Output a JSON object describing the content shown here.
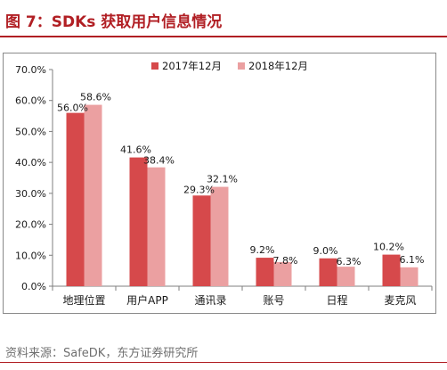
{
  "header": {
    "title": "图 7：SDKs 获取用户信息情况"
  },
  "footer": {
    "source": "资料来源：SafeDK，东方证券研究所"
  },
  "chart_data": {
    "type": "bar",
    "categories": [
      "地理位置",
      "用户APP",
      "通讯录",
      "账号",
      "日程",
      "麦克风"
    ],
    "series": [
      {
        "name": "2017年12月",
        "values": [
          56.0,
          41.6,
          29.3,
          9.2,
          9.0,
          10.2
        ],
        "labels": [
          "56.0%",
          "41.6%",
          "29.3%",
          "9.2%",
          "9.0%",
          "10.2%"
        ],
        "color": "#d6494b"
      },
      {
        "name": "2018年12月",
        "values": [
          58.6,
          38.4,
          32.1,
          7.8,
          6.3,
          6.1
        ],
        "labels": [
          "58.6%",
          "38.4%",
          "32.1%",
          "7.8%",
          "6.3%",
          "6.1%"
        ],
        "color": "#eba0a1"
      }
    ],
    "ylim": [
      0,
      70
    ],
    "yticks": [
      0,
      10,
      20,
      30,
      40,
      50,
      60,
      70
    ],
    "ytick_labels": [
      "0.0%",
      "10.0%",
      "20.0%",
      "30.0%",
      "40.0%",
      "50.0%",
      "60.0%",
      "70.0%"
    ],
    "legend_position": "top-center",
    "grid": false
  }
}
